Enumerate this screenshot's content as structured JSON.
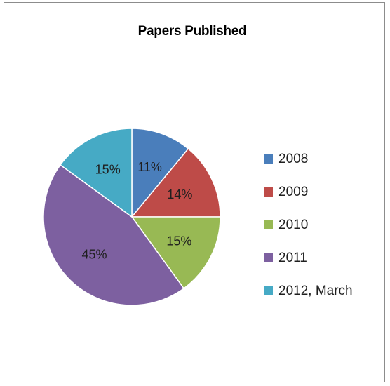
{
  "chart_data": {
    "type": "pie",
    "title": "Papers Published",
    "categories": [
      "2008",
      "2009",
      "2010",
      "2011",
      "2012, March"
    ],
    "values": [
      11,
      14,
      15,
      45,
      15
    ],
    "data_labels": [
      "11%",
      "14%",
      "15%",
      "45%",
      "15%"
    ],
    "colors": [
      "#4a7ebb",
      "#be4b48",
      "#98b954",
      "#7d60a0",
      "#46aac5"
    ],
    "legend_position": "right",
    "start_angle": "12 o'clock, clockwise"
  }
}
